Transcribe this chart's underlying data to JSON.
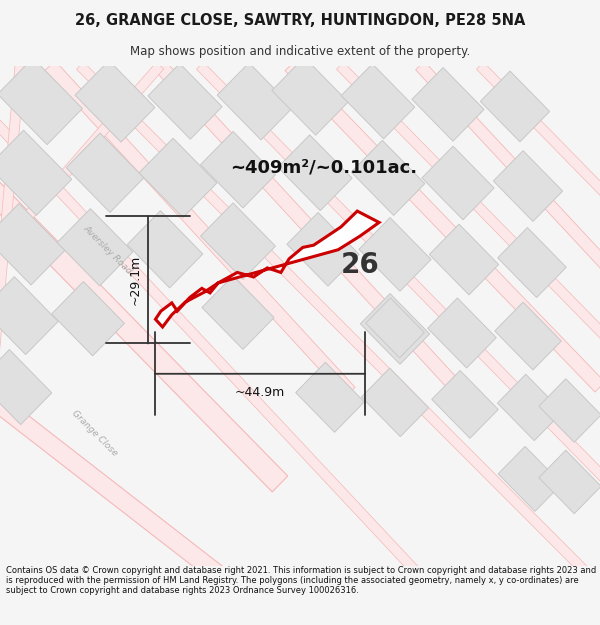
{
  "title": "26, GRANGE CLOSE, SAWTRY, HUNTINGDON, PE28 5NA",
  "subtitle": "Map shows position and indicative extent of the property.",
  "area_label": "~409m²/~0.101ac.",
  "width_label": "~44.9m",
  "height_label": "~29.1m",
  "number_label": "26",
  "footer": "Contains OS data © Crown copyright and database right 2021. This information is subject to Crown copyright and database rights 2023 and is reproduced with the permission of HM Land Registry. The polygons (including the associated geometry, namely x, y co-ordinates) are subject to Crown copyright and database rights 2023 Ordnance Survey 100026316.",
  "bg_color": "#f5f5f5",
  "map_bg": "#ffffff",
  "plot_color": "#cc0000",
  "road_color": "#f5b8b8",
  "road_outline_color": "#e8a0a0",
  "building_face": "#e0e0e0",
  "building_edge": "#c8c8c8",
  "title_fontsize": 10.5,
  "subtitle_fontsize": 8.5,
  "footer_fontsize": 6.0
}
